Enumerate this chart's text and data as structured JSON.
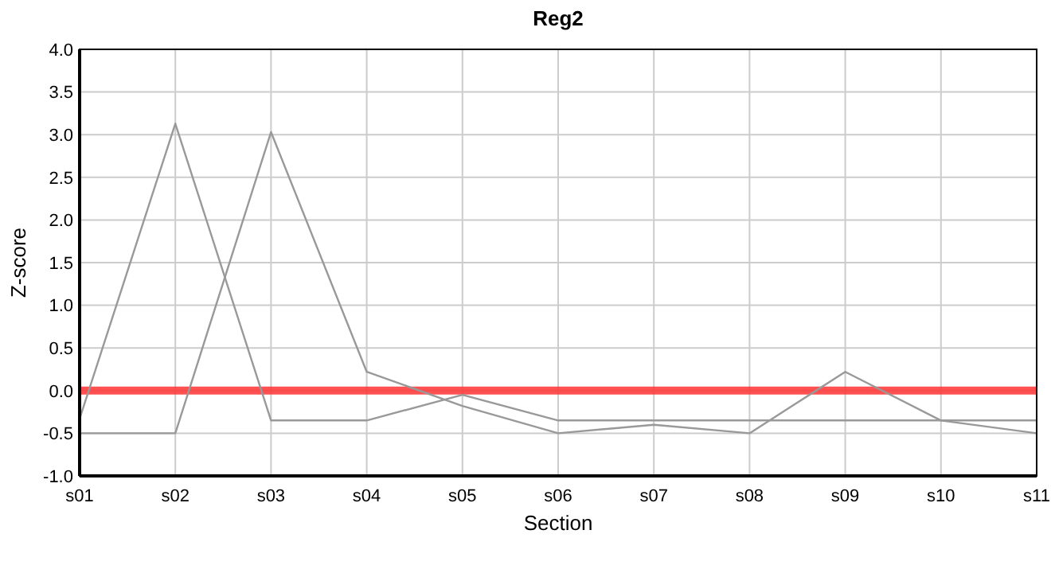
{
  "chart_data": {
    "type": "line",
    "title": "Reg2",
    "xlabel": "Section",
    "ylabel": "Z-score",
    "categories": [
      "s01",
      "s02",
      "s03",
      "s04",
      "s05",
      "s06",
      "s07",
      "s08",
      "s09",
      "s10",
      "s11"
    ],
    "series": [
      {
        "color": "#999999",
        "values": [
          -0.33,
          3.13,
          -0.35,
          -0.35,
          -0.05,
          -0.35,
          -0.35,
          -0.35,
          -0.35,
          -0.35,
          -0.35
        ]
      },
      {
        "color": "#999999",
        "values": [
          -0.5,
          -0.5,
          3.03,
          0.22,
          -0.18,
          -0.5,
          -0.4,
          -0.5,
          0.22,
          -0.35,
          -0.5
        ]
      }
    ],
    "ylim": [
      -1,
      4
    ],
    "yticks": [
      {
        "value": -1,
        "label": "-1.0"
      },
      {
        "value": -0.5,
        "label": "-0.5"
      },
      {
        "value": 0,
        "label": "0.0"
      },
      {
        "value": 0.5,
        "label": "0.5"
      },
      {
        "value": 1,
        "label": "1.0"
      },
      {
        "value": 1.5,
        "label": "1.5"
      },
      {
        "value": 2,
        "label": "2.0"
      },
      {
        "value": 2.5,
        "label": "2.5"
      },
      {
        "value": 3,
        "label": "3.0"
      },
      {
        "value": 3.5,
        "label": "3.5"
      },
      {
        "value": 4,
        "label": "4.0"
      }
    ],
    "ref_lines": [
      {
        "axis": "y",
        "value": 0,
        "color": "#ff3333"
      }
    ],
    "grid": true,
    "marker": "none",
    "line_style": "solid"
  }
}
